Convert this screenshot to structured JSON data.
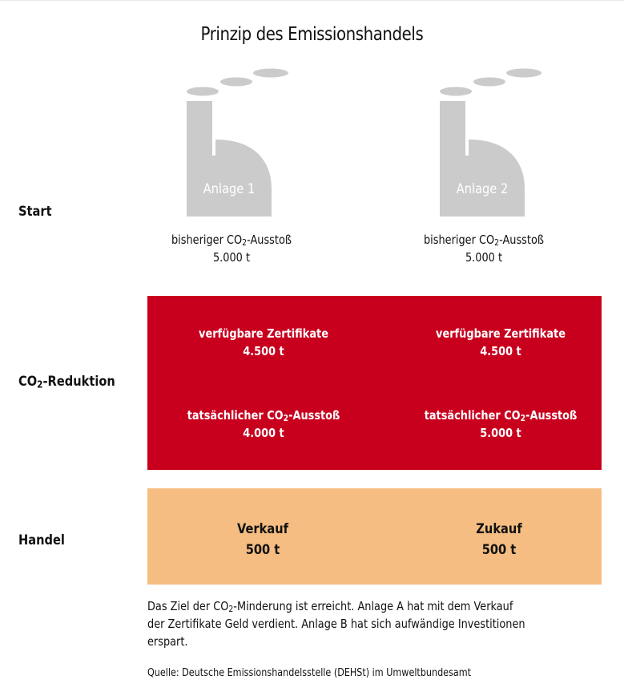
{
  "title": "Prinzip des Emissionshandels",
  "rows": {
    "start": "Start",
    "reduktion_prefix": "CO",
    "reduktion_sub": "2",
    "reduktion_suffix": "-Reduktion",
    "handel": "Handel"
  },
  "colors": {
    "factory": "#cbcbcb",
    "reduction_box": "#c8001e",
    "trade_box": "#f6bd82"
  },
  "plants": [
    {
      "name": "Anlage 1",
      "prev_label_prefix": "bisheriger CO",
      "prev_label_sub": "2",
      "prev_label_suffix": "-Ausstoß",
      "prev_value": "5.000 t",
      "cert_label": "verfügbare Zertifikate",
      "cert_value": "4.500 t",
      "actual_label_prefix": "tatsächlicher CO",
      "actual_label_sub": "2",
      "actual_label_suffix": "-Ausstoß",
      "actual_value": "4.000 t",
      "trade_label": "Verkauf",
      "trade_value": "500 t"
    },
    {
      "name": "Anlage 2",
      "prev_label_prefix": "bisheriger CO",
      "prev_label_sub": "2",
      "prev_label_suffix": "-Ausstoß",
      "prev_value": "5.000 t",
      "cert_label": "verfügbare Zertifikate",
      "cert_value": "4.500 t",
      "actual_label_prefix": "tatsächlicher CO",
      "actual_label_sub": "2",
      "actual_label_suffix": "-Ausstoß",
      "actual_value": "5.000 t",
      "trade_label": "Zukauf",
      "trade_value": "500 t"
    }
  ],
  "note": {
    "line1_prefix": "Das Ziel der CO",
    "line1_sub": "2",
    "line1_suffix": "-Minderung ist erreicht. Anlage A hat mit dem Verkauf",
    "line2": "der Zertifikate Geld verdient. Anlage B hat sich aufwändige Investitionen",
    "line3": "erspart."
  },
  "source": "Quelle: Deutsche Emissionshandelsstelle (DEHSt) im Umweltbundesamt"
}
